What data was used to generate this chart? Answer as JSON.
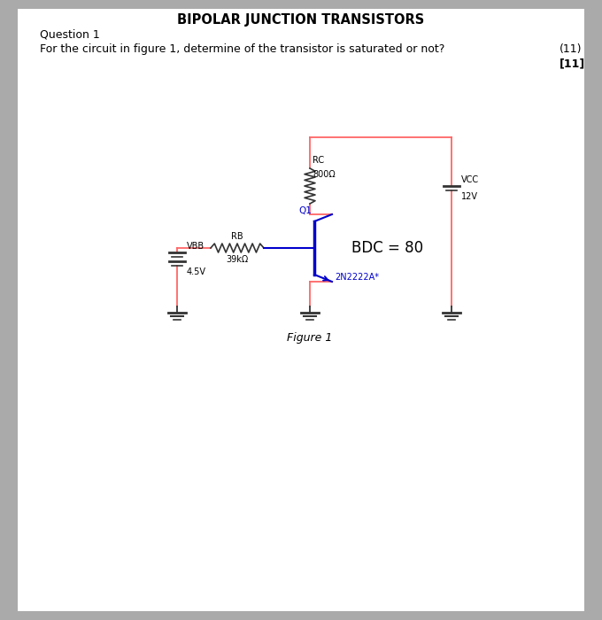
{
  "title": "BIPOLAR JUNCTION TRANSISTORS",
  "question": "Question 1",
  "problem_text": "For the circuit in figure 1, determine of the transistor is saturated or not?",
  "marks1": "(11)",
  "marks2": "[11]",
  "figure_label": "Figure 1",
  "circuit_color": "#ff6666",
  "transistor_color": "#0000cc",
  "text_color_black": "#000000",
  "background": "#ffffff",
  "page_bg": "#aaaaaa"
}
